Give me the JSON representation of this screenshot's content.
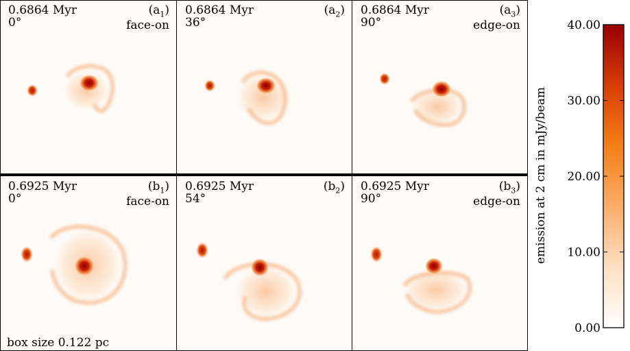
{
  "chart_data": {
    "type": "heatmap",
    "panels": [
      {
        "id": "a1",
        "tag_base": "(a",
        "tag_sub": "1",
        "time": "0.6864 Myr",
        "angle": "0°",
        "view": "face-on"
      },
      {
        "id": "a2",
        "tag_base": "(a",
        "tag_sub": "2",
        "time": "0.6864 Myr",
        "angle": "36°",
        "view": ""
      },
      {
        "id": "a3",
        "tag_base": "(a",
        "tag_sub": "3",
        "time": "0.6864 Myr",
        "angle": "90°",
        "view": "edge-on"
      },
      {
        "id": "b1",
        "tag_base": "(b",
        "tag_sub": "1",
        "time": "0.6925 Myr",
        "angle": "0°",
        "view": "face-on"
      },
      {
        "id": "b2",
        "tag_base": "(b",
        "tag_sub": "2",
        "time": "0.6925 Myr",
        "angle": "54°",
        "view": ""
      },
      {
        "id": "b3",
        "tag_base": "(b",
        "tag_sub": "3",
        "time": "0.6925 Myr",
        "angle": "90°",
        "view": "edge-on"
      }
    ],
    "box_size_label": "box size 0.122 pc",
    "colorbar": {
      "label": "emission at 2 cm in mJy/beam",
      "range": [
        0,
        40
      ],
      "ticks": [
        "0.00",
        "10.00",
        "20.00",
        "30.00",
        "40.00"
      ],
      "tick_values": [
        0,
        10,
        20,
        30,
        40
      ],
      "colors": [
        "#ffffff",
        "#fde0c2",
        "#fbad69",
        "#f57f17",
        "#d63d04",
        "#990000"
      ]
    }
  }
}
